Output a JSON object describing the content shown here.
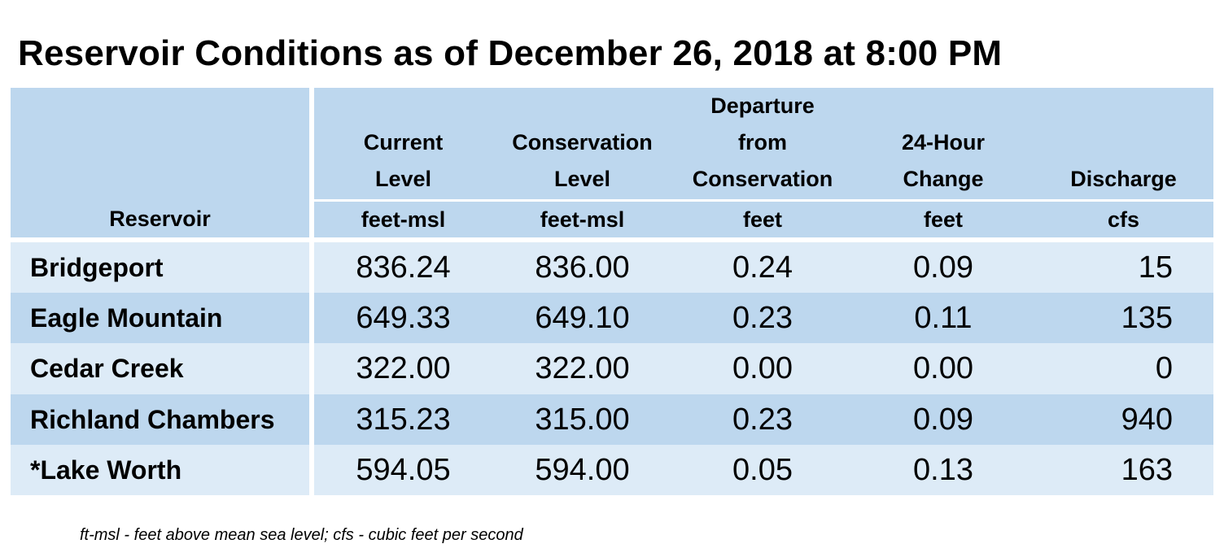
{
  "title": "Reservoir Conditions as of December 26, 2018 at 8:00 PM",
  "colors": {
    "header_bg": "#bdd7ee",
    "row_light": "#ddebf7",
    "row_dark": "#bdd7ee",
    "separator": "#ffffff"
  },
  "table": {
    "columns": [
      {
        "label_lines": [
          "Reservoir"
        ],
        "unit": ""
      },
      {
        "label_lines": [
          "Current",
          "Level"
        ],
        "unit": "feet-msl"
      },
      {
        "label_lines": [
          "Conservation",
          "Level"
        ],
        "unit": "feet-msl"
      },
      {
        "label_lines": [
          "Departure",
          "from",
          "Conservation"
        ],
        "unit": "feet"
      },
      {
        "label_lines": [
          "24-Hour",
          "Change"
        ],
        "unit": "feet"
      },
      {
        "label_lines": [
          "Discharge"
        ],
        "unit": "cfs"
      }
    ],
    "rows": [
      {
        "name": "Bridgeport",
        "current": "836.24",
        "conservation": "836.00",
        "departure": "0.24",
        "change": "0.09",
        "discharge": "15"
      },
      {
        "name": "Eagle Mountain",
        "current": "649.33",
        "conservation": "649.10",
        "departure": "0.23",
        "change": "0.11",
        "discharge": "135"
      },
      {
        "name": "Cedar Creek",
        "current": "322.00",
        "conservation": "322.00",
        "departure": "0.00",
        "change": "0.00",
        "discharge": "0"
      },
      {
        "name": "Richland Chambers",
        "current": "315.23",
        "conservation": "315.00",
        "departure": "0.23",
        "change": "0.09",
        "discharge": "940"
      },
      {
        "name": "*Lake Worth",
        "current": "594.05",
        "conservation": "594.00",
        "departure": "0.05",
        "change": "0.13",
        "discharge": "163"
      }
    ]
  },
  "footnote": "ft-msl - feet above mean sea level; cfs - cubic feet per second"
}
